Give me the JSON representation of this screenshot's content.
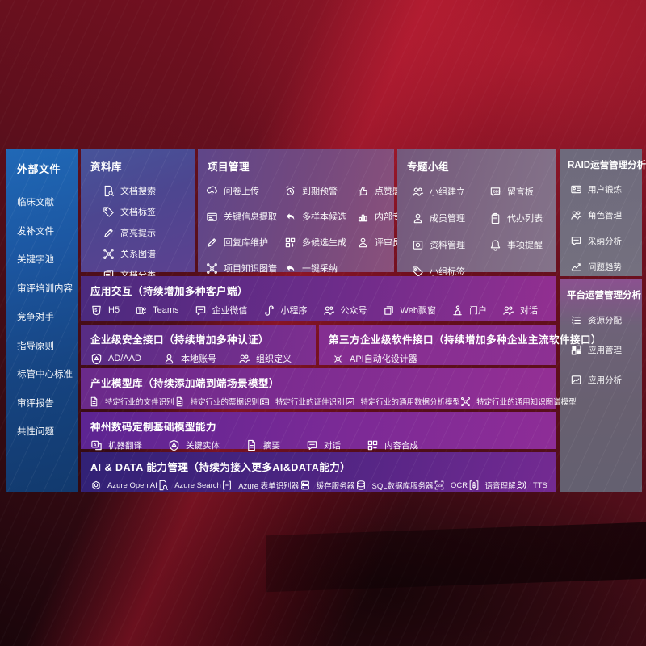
{
  "colors": {
    "background_red": "#731020",
    "sidebar_blue": "#1c57a2",
    "panel_purple": "#6e2c8a",
    "text": "#ffffff"
  },
  "sidebar_left": {
    "title": "外部文件",
    "items": [
      {
        "label": "临床文献"
      },
      {
        "label": "发补文件"
      },
      {
        "label": "关键字池"
      },
      {
        "label": "审评培训内容"
      },
      {
        "label": "竞争对手"
      },
      {
        "label": "指导原则"
      },
      {
        "label": "标管中心标准"
      },
      {
        "label": "审评报告"
      },
      {
        "label": "共性问题"
      }
    ]
  },
  "repository": {
    "title": "资料库",
    "items": [
      {
        "label": "文档搜索",
        "icon": "doc-search-icon"
      },
      {
        "label": "文档标签",
        "icon": "tag-icon"
      },
      {
        "label": "高亮提示",
        "icon": "highlight-pen-icon"
      },
      {
        "label": "关系图谱",
        "icon": "knowledge-graph-icon"
      },
      {
        "label": "文档分类",
        "icon": "doc-stack-icon"
      }
    ]
  },
  "project": {
    "title": "项目管理",
    "items": [
      {
        "label": "问卷上传",
        "icon": "cloud-upload-icon"
      },
      {
        "label": "到期预警",
        "icon": "alarm-icon"
      },
      {
        "label": "点赞感谢",
        "icon": "thumbs-up-icon"
      },
      {
        "label": "关键信息提取",
        "icon": "info-extract-icon"
      },
      {
        "label": "多样本候选",
        "icon": "reply-arrow-icon"
      },
      {
        "label": "内部专家排名",
        "icon": "ranking-icon"
      },
      {
        "label": "回复库维护",
        "icon": "highlight-pen-icon"
      },
      {
        "label": "多候选生成",
        "icon": "grid-plus-icon"
      },
      {
        "label": "评审员画像",
        "icon": "person-icon"
      },
      {
        "label": "项目知识图谱",
        "icon": "knowledge-graph-icon"
      },
      {
        "label": "一键采纳",
        "icon": "reply-arrow-icon"
      }
    ]
  },
  "groups": {
    "title": "专题小组",
    "items": [
      {
        "label": "小组建立",
        "icon": "people-icon"
      },
      {
        "label": "留言板",
        "icon": "bbs-icon"
      },
      {
        "label": "成员管理",
        "icon": "person-plus-icon"
      },
      {
        "label": "代办列表",
        "icon": "clipboard-icon"
      },
      {
        "label": "资料管理",
        "icon": "album-icon"
      },
      {
        "label": "事项提醒",
        "icon": "bell-icon"
      },
      {
        "label": "小组标签",
        "icon": "tag-icon"
      }
    ]
  },
  "raid": {
    "title": "RAID运营管理分析",
    "items": [
      {
        "label": "用户锻炼",
        "icon": "id-card-icon"
      },
      {
        "label": "角色管理",
        "icon": "people-icon"
      },
      {
        "label": "采纳分析",
        "icon": "chat-analysis-icon"
      },
      {
        "label": "问题趋势",
        "icon": "trend-icon"
      }
    ]
  },
  "platform": {
    "title": "平台运营管理分析",
    "items": [
      {
        "label": "资源分配",
        "icon": "list-icon"
      },
      {
        "label": "应用管理",
        "icon": "grid-icon"
      },
      {
        "label": "应用分析",
        "icon": "chart-icon"
      }
    ]
  },
  "interaction": {
    "title": "应用交互（持续增加多种客户端）",
    "items": [
      {
        "label": "H5",
        "icon": "h5-icon"
      },
      {
        "label": "Teams",
        "icon": "teams-icon"
      },
      {
        "label": "企业微信",
        "icon": "chat-bubble-icon"
      },
      {
        "label": "小程序",
        "icon": "miniprogram-icon"
      },
      {
        "label": "公众号",
        "icon": "people-icon"
      },
      {
        "label": "Web飘窗",
        "icon": "window-icon"
      },
      {
        "label": "门户",
        "icon": "portal-icon"
      },
      {
        "label": "对话",
        "icon": "chat-people-icon"
      }
    ]
  },
  "security": {
    "title": "企业级安全接口（持续增加多种认证）",
    "items": [
      {
        "label": "AD/AAD",
        "icon": "shield-icon"
      },
      {
        "label": "本地账号",
        "icon": "person-icon"
      },
      {
        "label": "组织定义",
        "icon": "people-icon"
      }
    ]
  },
  "thirdparty": {
    "title": "第三方企业级软件接口（持续增加多种企业主流软件接口）",
    "items": [
      {
        "label": "API自动化设计器",
        "icon": "gear-icon"
      }
    ]
  },
  "industry_models": {
    "title": "产业模型库（持续添加端到端场景模型）",
    "items": [
      {
        "label": "特定行业的文件识别",
        "icon": "doc-icon"
      },
      {
        "label": "特定行业的票据识别",
        "icon": "receipt-icon"
      },
      {
        "label": "特定行业的证件识别",
        "icon": "id-card-icon"
      },
      {
        "label": "特定行业的通用数据分析模型",
        "icon": "chart-icon"
      },
      {
        "label": "特定行业的通用知识图谱模型",
        "icon": "knowledge-graph-icon"
      }
    ]
  },
  "base_models": {
    "title": "神州数码定制基础模型能力",
    "items": [
      {
        "label": "机器翻译",
        "icon": "translate-icon"
      },
      {
        "label": "关键实体",
        "icon": "entity-shield-icon"
      },
      {
        "label": "摘要",
        "icon": "doc-icon"
      },
      {
        "label": "对话",
        "icon": "chat-bubble-icon"
      },
      {
        "label": "内容合成",
        "icon": "grid-plus-icon"
      }
    ]
  },
  "ai_data": {
    "title": "AI & DATA 能力管理（持续为接入更多AI&DATA能力）",
    "items": [
      {
        "label": "Azure Open AI",
        "icon": "openai-icon"
      },
      {
        "label": "Azure Search",
        "icon": "doc-search-icon"
      },
      {
        "label": "Azure 表单识别器",
        "icon": "brackets-icon"
      },
      {
        "label": "缓存服务器",
        "icon": "server-icon"
      },
      {
        "label": "SQL数据库服务器",
        "icon": "database-icon"
      },
      {
        "label": "OCR",
        "icon": "ocr-icon"
      },
      {
        "label": "语音理解",
        "icon": "mic-icon"
      },
      {
        "label": "TTS",
        "icon": "tts-icon"
      }
    ]
  }
}
